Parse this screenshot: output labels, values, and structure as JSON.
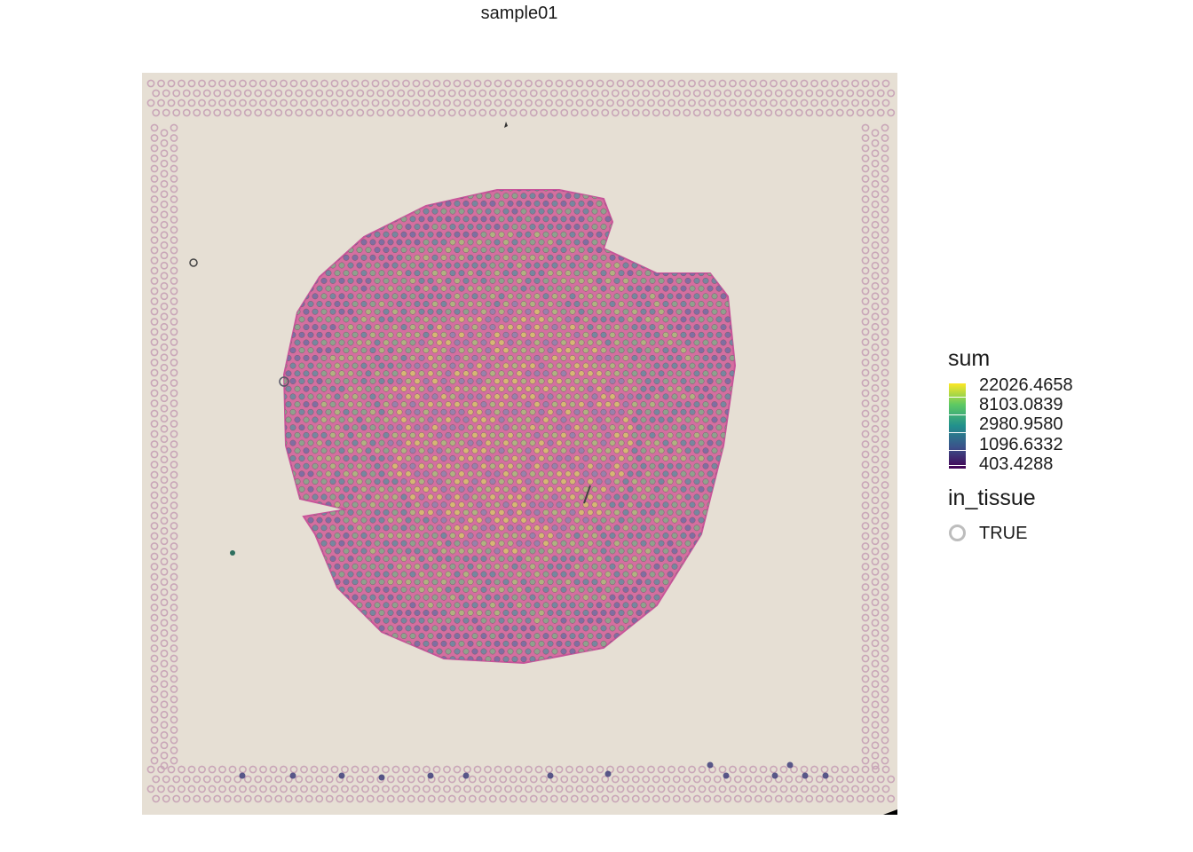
{
  "title": "sample01",
  "legend": {
    "color_title": "sum",
    "color_scale": "viridis",
    "color_breaks": [
      "22026.4658",
      "8103.0839",
      "2980.9580",
      "1096.6332",
      "403.4288"
    ],
    "shape_title": "in_tissue",
    "shape_entries": [
      "TRUE"
    ]
  },
  "colors": {
    "slide_background": "#e6dfd4",
    "tissue_pink": "#d46fa0",
    "fiducial_spot": "#c9a6b8",
    "colorbar_low": "#440154",
    "colorbar_high": "#fde725"
  }
}
